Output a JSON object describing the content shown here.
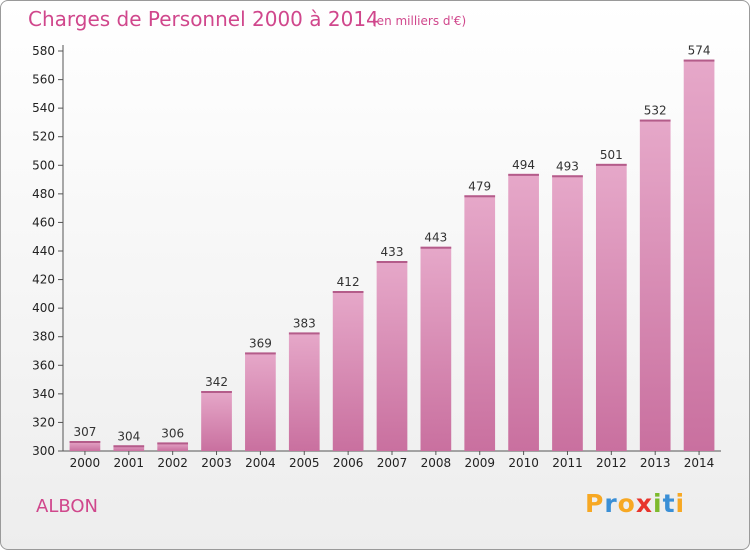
{
  "title": "Charges de Personnel 2000 à 2014",
  "subtitle": "(en milliers d'€)",
  "commune": "ALBON",
  "logo": {
    "letters": [
      "P",
      "r",
      "o",
      "x",
      "i",
      "t",
      "i"
    ],
    "colors": [
      "#f7a823",
      "#3a8fd6",
      "#f7a823",
      "#e8342c",
      "#7dba2d",
      "#3a8fd6",
      "#f7a823"
    ]
  },
  "colors": {
    "bar": "#c9709f",
    "bar_light": "#e6a8c9",
    "title": "#d0478c"
  },
  "chart_data": {
    "type": "bar",
    "categories": [
      "2000",
      "2001",
      "2002",
      "2003",
      "2004",
      "2005",
      "2006",
      "2007",
      "2008",
      "2009",
      "2010",
      "2011",
      "2012",
      "2013",
      "2014"
    ],
    "values": [
      307,
      304,
      306,
      342,
      369,
      383,
      412,
      433,
      443,
      479,
      494,
      493,
      501,
      532,
      574
    ],
    "ylim": [
      300,
      580
    ],
    "yticks": [
      300,
      320,
      340,
      360,
      380,
      400,
      420,
      440,
      460,
      480,
      500,
      520,
      540,
      560,
      580
    ],
    "grid": false
  }
}
